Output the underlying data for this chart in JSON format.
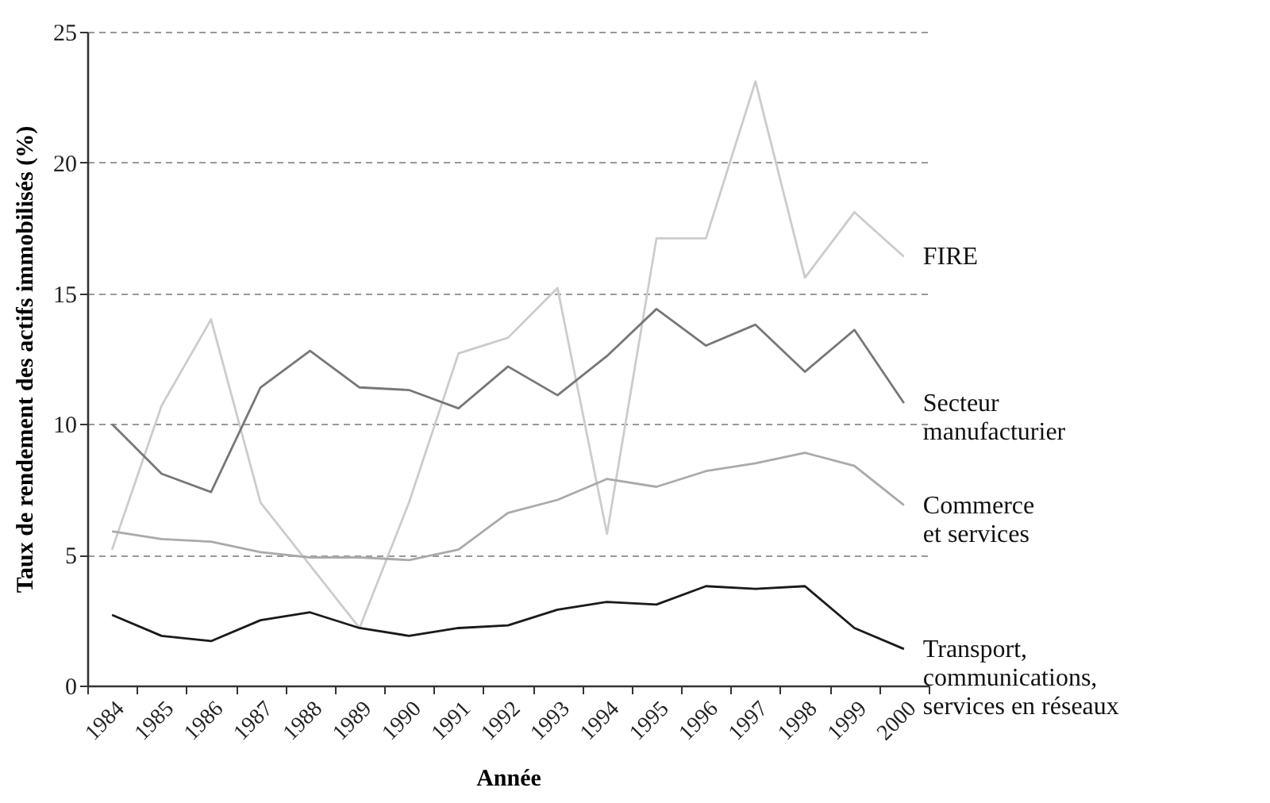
{
  "chart_data": {
    "type": "line",
    "xlabel": "Année",
    "ylabel": "Taux de rendement des actifs immobilisés (%)",
    "categories": [
      "1984",
      "1985",
      "1986",
      "1987",
      "1988",
      "1989",
      "1990",
      "1991",
      "1992",
      "1993",
      "1994",
      "1995",
      "1996",
      "1997",
      "1998",
      "1999",
      "2000"
    ],
    "series": [
      {
        "name": "FIRE",
        "color": "#cccccc",
        "values": [
          5.2,
          10.7,
          14.0,
          7.0,
          4.6,
          2.2,
          7.0,
          12.7,
          13.3,
          15.2,
          5.8,
          17.1,
          17.1,
          23.1,
          15.6,
          18.1,
          16.4
        ]
      },
      {
        "name": "Secteur\nmanufacturier",
        "color": "#777777",
        "values": [
          10.0,
          8.1,
          7.4,
          11.4,
          12.8,
          11.4,
          11.3,
          10.6,
          12.2,
          11.1,
          12.6,
          14.4,
          13.0,
          13.8,
          12.0,
          13.6,
          10.8
        ]
      },
      {
        "name": "Commerce\net services",
        "color": "#aaaaaa",
        "values": [
          5.9,
          5.6,
          5.5,
          5.1,
          4.9,
          4.9,
          4.8,
          5.2,
          6.6,
          7.1,
          7.9,
          7.6,
          8.2,
          8.5,
          8.9,
          8.4,
          6.9
        ]
      },
      {
        "name": "Transport,\ncommunications,\nservices en réseaux",
        "color": "#1a1a1a",
        "values": [
          2.7,
          1.9,
          1.7,
          2.5,
          2.8,
          2.2,
          1.9,
          2.2,
          2.3,
          2.9,
          3.2,
          3.1,
          3.8,
          3.7,
          3.8,
          2.2,
          1.4
        ]
      }
    ],
    "ylim": [
      0,
      25
    ],
    "yticks": [
      0,
      5,
      10,
      15,
      20,
      25
    ],
    "grid": "y",
    "legend": false,
    "marker": "none",
    "line_style": "solid"
  }
}
